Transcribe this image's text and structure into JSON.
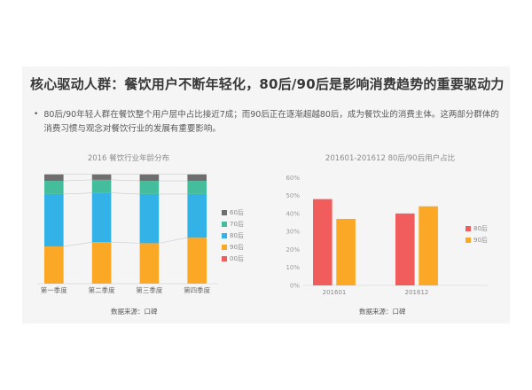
{
  "slide": {
    "title": "核心驱动人群：餐饮用户不断年轻化，80后/90后是影响消费趋势的重要驱动力",
    "bullet_marker": "•",
    "bullet": "80后/90年轻人群在餐饮整个用户层中占比接近7成；而90后正在逐渐超越80后，成为餐饮业的消费主体。这两部分群体的消费习惯与观念对餐饮行业的发展有重要影响。"
  },
  "colors": {
    "slide_background": "#f5f5f5",
    "title_text": "#383838",
    "body_text": "#595959",
    "orange_90hou": "#fba827",
    "blue_80hou": "#32b2e6",
    "green_70hou": "#43bd9b",
    "gray_60hou": "#6e6e6e",
    "red_00hou_80hou": "#f15c5c"
  },
  "chart_data": [
    {
      "type": "bar",
      "subtype": "stacked-percent-column",
      "title": "2016 餐饮行业年龄分布",
      "categories": [
        "第一季度",
        "第二季度",
        "第三季度",
        "第四季度"
      ],
      "series": [
        {
          "name": "00后",
          "color": "#f15c5c",
          "values": [
            0,
            0,
            0,
            0
          ]
        },
        {
          "name": "90后",
          "color": "#fba827",
          "values": [
            34,
            38,
            37,
            42
          ]
        },
        {
          "name": "80后",
          "color": "#32b2e6",
          "values": [
            48,
            45,
            45,
            40
          ]
        },
        {
          "name": "70后",
          "color": "#43bd9b",
          "values": [
            12,
            12,
            12,
            12
          ]
        },
        {
          "name": "60后",
          "color": "#6e6e6e",
          "values": [
            6,
            5,
            6,
            6
          ]
        }
      ],
      "stack_order": "bottom-to-top",
      "ylim": [
        0,
        100
      ],
      "grid": false,
      "connector_lines": true,
      "legend_position": "right",
      "legend": [
        {
          "name": "60后",
          "color": "#6e6e6e"
        },
        {
          "name": "70后",
          "color": "#43bd9b"
        },
        {
          "name": "80后",
          "color": "#32b2e6"
        },
        {
          "name": "90后",
          "color": "#fba827"
        },
        {
          "name": "00后",
          "color": "#f15c5c"
        }
      ],
      "source": "数据来源：口碑"
    },
    {
      "type": "bar",
      "subtype": "grouped-column",
      "title": "201601-201612  80后/90后用户占比",
      "categories": [
        "201601",
        "201612"
      ],
      "series": [
        {
          "name": "80后",
          "color": "#f15c5c",
          "values": [
            48,
            40
          ]
        },
        {
          "name": "90后",
          "color": "#fba827",
          "values": [
            37,
            44
          ]
        }
      ],
      "yticks": [
        "0%",
        "10%",
        "20%",
        "30%",
        "40%",
        "50%",
        "60%"
      ],
      "ylim": [
        0,
        60
      ],
      "ylabel": "",
      "xlabel": "",
      "grid": false,
      "legend_position": "right",
      "legend": [
        {
          "name": "80后",
          "color": "#f15c5c"
        },
        {
          "name": "90后",
          "color": "#fba827"
        }
      ],
      "source": "数据来源：口碑"
    }
  ]
}
